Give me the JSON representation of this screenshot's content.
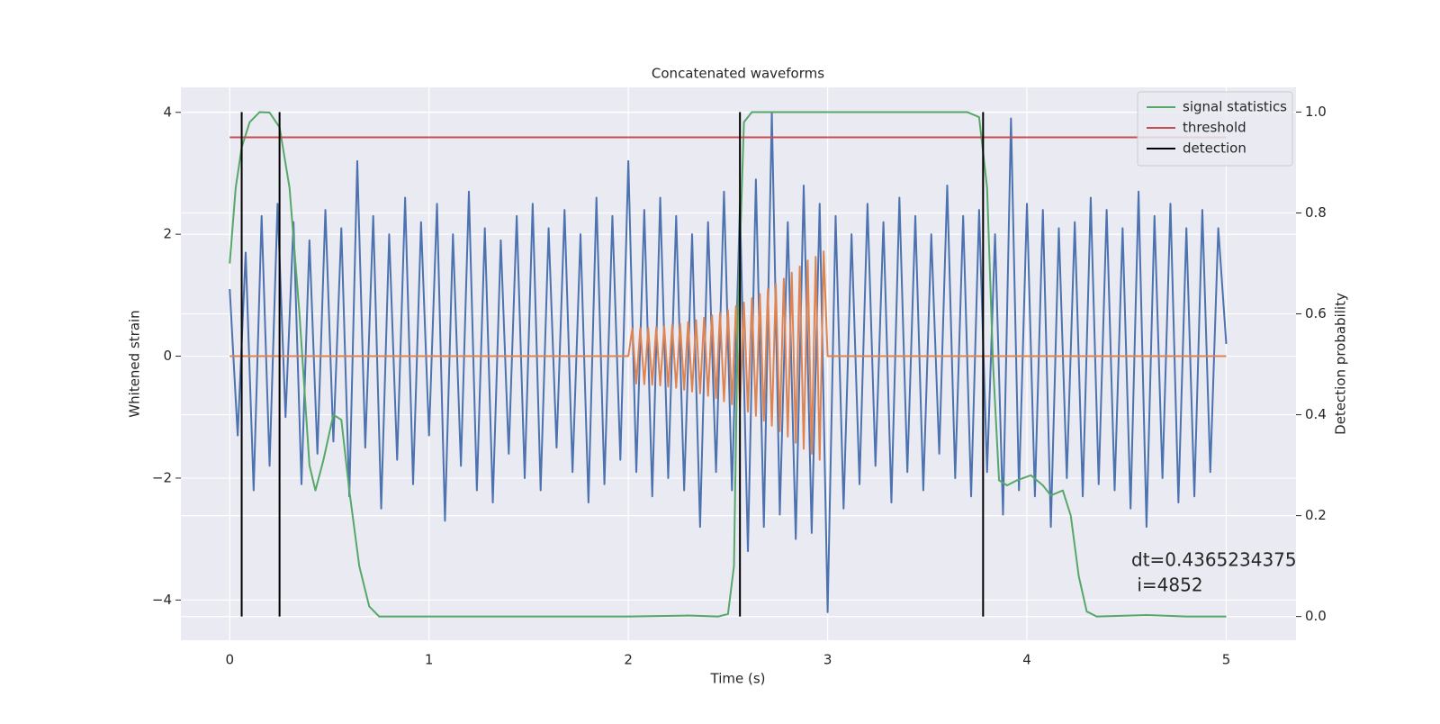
{
  "chart_data": {
    "type": "line",
    "title": "Concatenated waveforms",
    "xlabel": "Time (s)",
    "ylabel": "Whitened strain",
    "y2label": "Detection probability",
    "xlim": [
      -0.245,
      5.35
    ],
    "xticks": [
      0,
      1,
      2,
      3,
      4,
      5
    ],
    "ylim": [
      -4.66,
      4.41
    ],
    "yticks": [
      {
        "value": -4,
        "label": "−4"
      },
      {
        "value": -2,
        "label": "−2"
      },
      0,
      2,
      4
    ],
    "y2lim": [
      -0.047,
      1.049
    ],
    "y2ticks": [
      {
        "value": 0,
        "label": "0.0"
      },
      0.2,
      0.4,
      0.6,
      0.8,
      {
        "value": 1,
        "label": "1.0"
      }
    ],
    "grid": true,
    "legend": "upper right",
    "annotation": [
      "dt=0.4365234375",
      " i=4852"
    ],
    "series": [
      {
        "color": "#4c72b0",
        "axis": "y",
        "x": [
          0,
          0.04,
          0.08,
          0.12,
          0.16,
          0.2,
          0.24,
          0.28,
          0.32,
          0.36,
          0.4,
          0.44,
          0.48,
          0.52,
          0.56,
          0.6,
          0.64,
          0.68,
          0.72,
          0.76,
          0.8,
          0.84,
          0.88,
          0.92,
          0.96,
          1,
          1.04,
          1.08,
          1.12,
          1.16,
          1.2,
          1.24,
          1.28,
          1.32,
          1.36,
          1.4,
          1.44,
          1.48,
          1.52,
          1.56,
          1.6,
          1.64,
          1.68,
          1.72,
          1.76,
          1.8,
          1.84,
          1.88,
          1.92,
          1.96,
          2,
          2.04,
          2.08,
          2.12,
          2.16,
          2.2,
          2.24,
          2.28,
          2.32,
          2.36,
          2.4,
          2.44,
          2.48,
          2.52,
          2.56,
          2.6,
          2.64,
          2.68,
          2.72,
          2.76,
          2.8,
          2.84,
          2.88,
          2.92,
          2.96,
          3,
          3.04,
          3.08,
          3.12,
          3.16,
          3.2,
          3.24,
          3.28,
          3.32,
          3.36,
          3.4,
          3.44,
          3.48,
          3.52,
          3.56,
          3.6,
          3.64,
          3.68,
          3.72,
          3.76,
          3.8,
          3.84,
          3.88,
          3.92,
          3.96,
          4,
          4.04,
          4.08,
          4.12,
          4.16,
          4.2,
          4.24,
          4.28,
          4.32,
          4.36,
          4.4,
          4.44,
          4.48,
          4.52,
          4.56,
          4.6,
          4.64,
          4.68,
          4.72,
          4.76,
          4.8,
          4.84,
          4.88,
          4.92,
          4.96,
          5
        ],
        "values": [
          1.1,
          -1.3,
          1.7,
          -2.2,
          2.3,
          -1.8,
          2.5,
          -1.0,
          2.2,
          -2.1,
          1.9,
          -1.6,
          2.4,
          -1.4,
          2.1,
          -2.3,
          3.2,
          -1.5,
          2.3,
          -2.5,
          2.0,
          -1.7,
          2.6,
          -2.1,
          2.2,
          -1.3,
          2.5,
          -2.7,
          2.0,
          -1.8,
          2.7,
          -2.2,
          2.1,
          -2.4,
          1.9,
          -1.6,
          2.3,
          -2.0,
          2.5,
          -2.2,
          2.1,
          -1.5,
          2.4,
          -1.9,
          2.0,
          -2.4,
          2.6,
          -2.1,
          2.3,
          -1.7,
          3.2,
          -1.9,
          2.4,
          -2.3,
          2.6,
          -2.0,
          2.3,
          -2.2,
          2.0,
          -2.8,
          2.2,
          -1.9,
          2.7,
          -2.2,
          2.5,
          -3.2,
          2.9,
          -2.8,
          4.0,
          -2.6,
          2.2,
          -3.0,
          2.8,
          -2.9,
          2.5,
          -4.2,
          2.3,
          -2.5,
          2.0,
          -2.1,
          2.5,
          -1.8,
          2.2,
          -2.4,
          2.6,
          -1.9,
          2.3,
          -2.2,
          2.0,
          -1.6,
          2.8,
          -2.0,
          2.3,
          -2.3,
          2.4,
          -1.9,
          2.0,
          -2.6,
          3.9,
          -2.2,
          2.5,
          -2.3,
          2.4,
          -2.8,
          2.1,
          -2.0,
          2.2,
          -2.3,
          2.6,
          -2.1,
          2.4,
          -2.2,
          2.1,
          -2.5,
          2.7,
          -2.8,
          2.3,
          -2.0,
          2.5,
          -2.4,
          2.1,
          -2.3,
          2.4,
          -1.9,
          2.1,
          0.2
        ]
      },
      {
        "color": "#dd8452",
        "axis": "y",
        "x": [
          0,
          2,
          2.02,
          2.04,
          2.06,
          2.08,
          2.1,
          2.12,
          2.14,
          2.16,
          2.18,
          2.2,
          2.22,
          2.24,
          2.26,
          2.28,
          2.3,
          2.32,
          2.34,
          2.36,
          2.38,
          2.4,
          2.42,
          2.44,
          2.46,
          2.48,
          2.5,
          2.52,
          2.54,
          2.56,
          2.58,
          2.6,
          2.62,
          2.64,
          2.66,
          2.68,
          2.7,
          2.72,
          2.74,
          2.76,
          2.78,
          2.8,
          2.82,
          2.84,
          2.86,
          2.88,
          2.9,
          2.92,
          2.94,
          2.96,
          2.98,
          3,
          5
        ],
        "values": [
          0,
          0,
          0.45,
          -0.45,
          0.46,
          -0.46,
          0.46,
          -0.47,
          0.47,
          -0.48,
          0.49,
          -0.5,
          0.51,
          -0.52,
          0.53,
          -0.55,
          0.56,
          -0.58,
          0.59,
          -0.61,
          0.63,
          -0.65,
          0.67,
          -0.69,
          0.71,
          -0.74,
          0.76,
          -0.79,
          0.82,
          -0.85,
          0.88,
          -0.91,
          0.95,
          -0.98,
          1.02,
          -1.06,
          1.1,
          -1.14,
          1.18,
          -1.23,
          1.27,
          -1.32,
          1.37,
          -1.42,
          1.47,
          -1.52,
          1.57,
          -1.6,
          1.63,
          -1.7,
          1.72,
          0,
          0
        ]
      },
      {
        "name": "signal statistics",
        "color": "#55a868",
        "axis": "y2",
        "x": [
          0,
          0.03,
          0.06,
          0.1,
          0.15,
          0.2,
          0.25,
          0.3,
          0.35,
          0.4,
          0.43,
          0.47,
          0.52,
          0.56,
          0.6,
          0.65,
          0.7,
          0.75,
          1,
          2,
          2.3,
          2.45,
          2.5,
          2.53,
          2.55,
          2.58,
          2.62,
          3.7,
          3.76,
          3.8,
          3.83,
          3.86,
          3.9,
          3.95,
          4.02,
          4.08,
          4.12,
          4.18,
          4.22,
          4.26,
          4.3,
          4.35,
          4.6,
          4.8,
          5
        ],
        "values": [
          0.7,
          0.85,
          0.93,
          0.98,
          1.0,
          0.999,
          0.97,
          0.85,
          0.6,
          0.3,
          0.25,
          0.31,
          0.4,
          0.39,
          0.25,
          0.1,
          0.02,
          0,
          0,
          0,
          0.002,
          0,
          0.005,
          0.1,
          0.6,
          0.98,
          1.0,
          1.0,
          0.99,
          0.85,
          0.5,
          0.27,
          0.26,
          0.27,
          0.28,
          0.26,
          0.24,
          0.25,
          0.2,
          0.08,
          0.01,
          0,
          0.003,
          0,
          0
        ]
      },
      {
        "name": "threshold",
        "color": "#c44e52",
        "axis": "y2",
        "x": [
          0,
          5
        ],
        "values": [
          0.95,
          0.95
        ]
      },
      {
        "name": "detection",
        "color": "#000000",
        "axis": "y2",
        "kind": "vline",
        "x": [
          0.06,
          0.25,
          2.56,
          3.78
        ],
        "ymin": 0,
        "ymax": 1
      }
    ]
  }
}
